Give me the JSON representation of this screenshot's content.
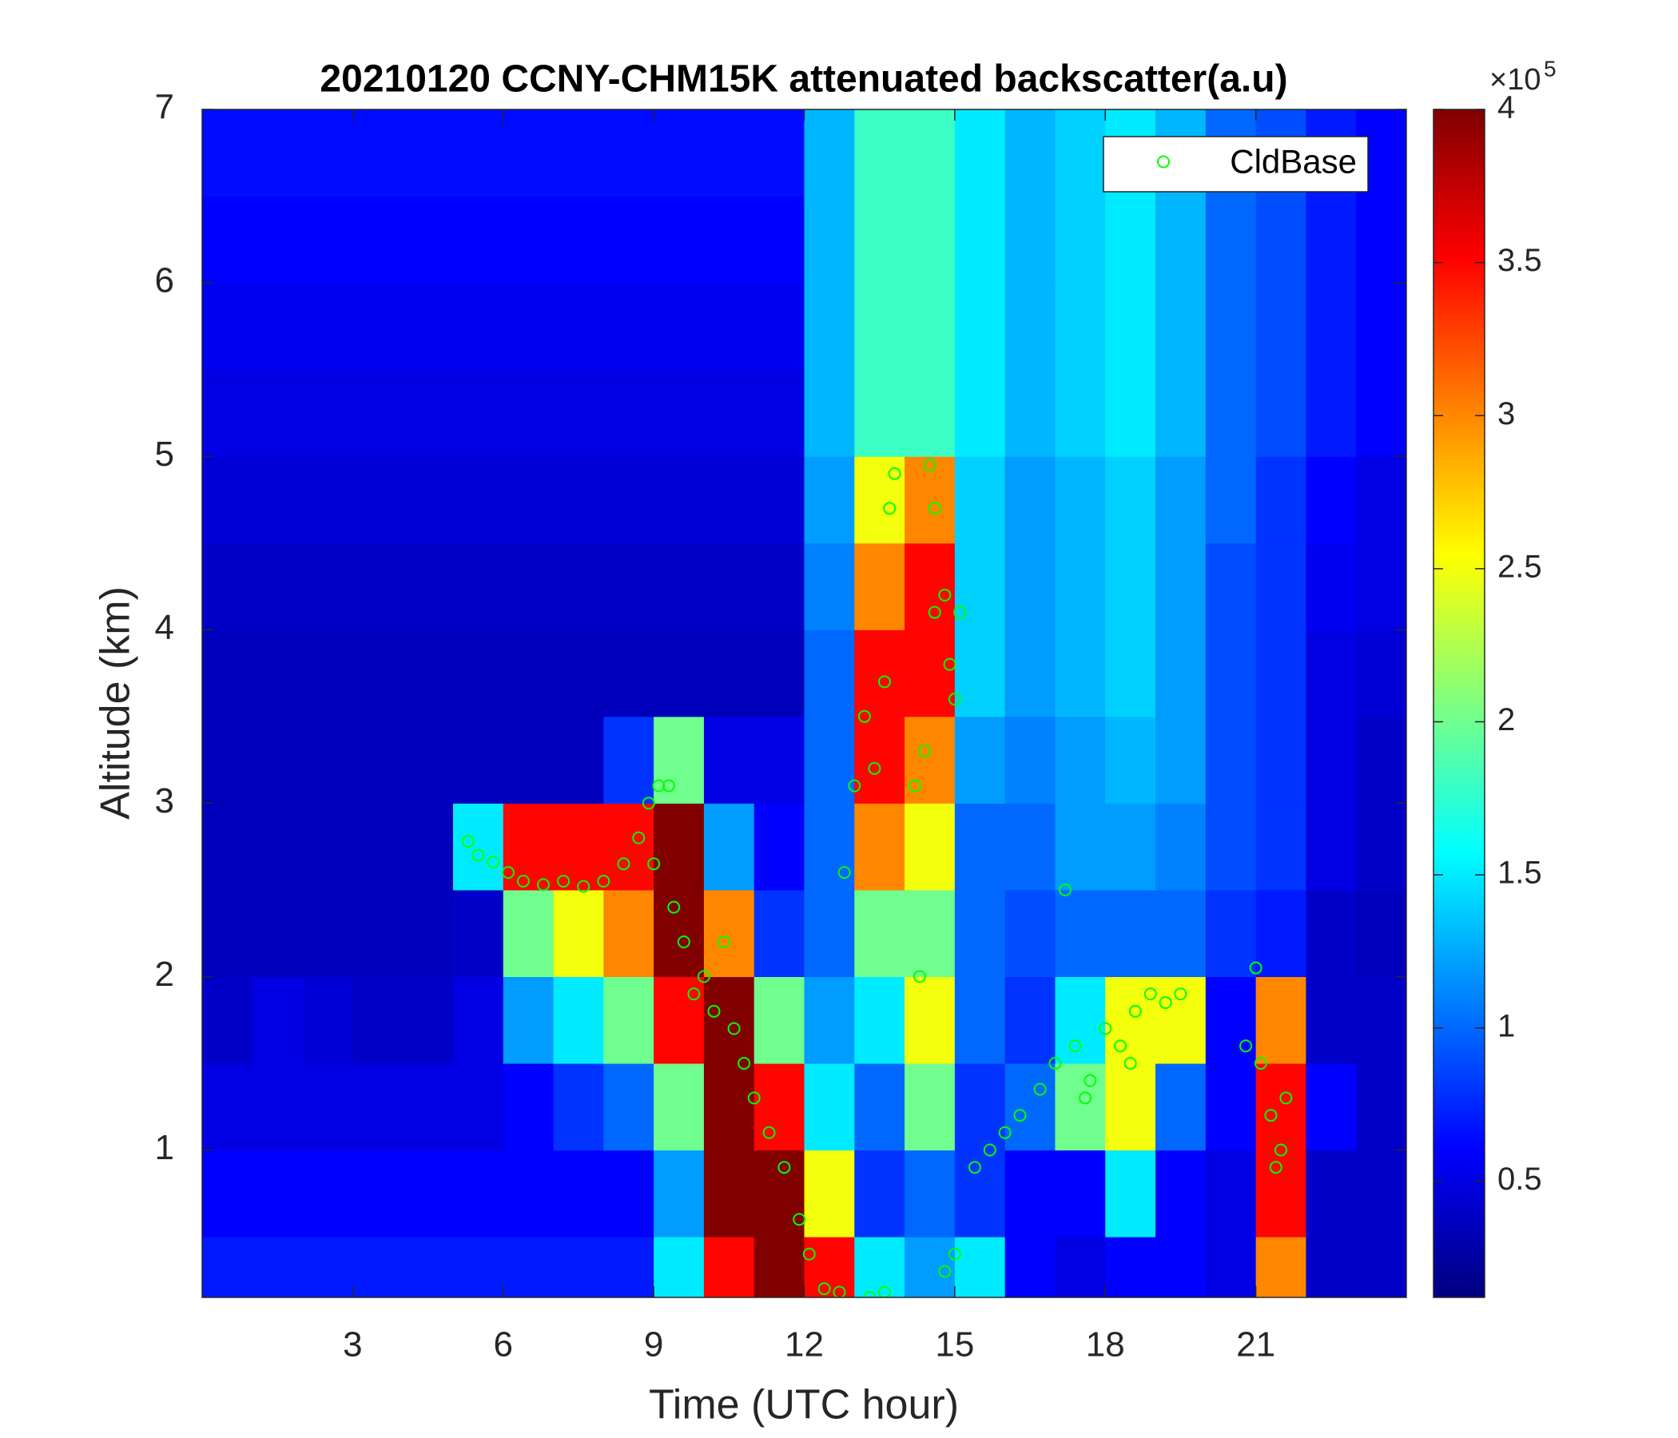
{
  "chart_data": {
    "type": "heatmap",
    "title": "20210120 CCNY-CHM15K attenuated backscatter(a.u)",
    "xlabel": "Time (UTC hour)",
    "ylabel": "Altitude (km)",
    "x": [
      0.5,
      1.5,
      2.5,
      3.5,
      4.5,
      5.5,
      6.5,
      7.5,
      8.5,
      9.5,
      10.5,
      11.5,
      12.5,
      13.5,
      14.5,
      15.5,
      16.5,
      17.5,
      18.5,
      19.5,
      20.5,
      21.5,
      22.5,
      23.5
    ],
    "y": [
      0.25,
      0.75,
      1.25,
      1.75,
      2.25,
      2.75,
      3.25,
      3.75,
      4.25,
      4.75,
      5.25,
      5.75,
      6.25,
      6.75
    ],
    "z": [
      [
        0.7,
        0.7,
        0.7,
        0.7,
        0.7,
        0.7,
        0.7,
        0.7,
        0.7,
        1.5,
        3.5,
        4,
        3.5,
        1.5,
        1.2,
        1.5,
        0.6,
        0.5,
        0.6,
        0.6,
        0.5,
        3,
        0.4,
        0.4
      ],
      [
        0.6,
        0.6,
        0.6,
        0.6,
        0.6,
        0.6,
        0.6,
        0.6,
        0.6,
        1.2,
        4,
        4,
        2.5,
        0.8,
        1,
        0.8,
        0.6,
        0.6,
        1.5,
        0.6,
        0.5,
        3.5,
        0.4,
        0.4
      ],
      [
        0.5,
        0.5,
        0.5,
        0.5,
        0.5,
        0.5,
        0.6,
        0.8,
        1,
        2,
        4,
        3.5,
        1.5,
        1,
        2,
        0.8,
        1,
        2,
        2.5,
        1,
        0.6,
        3.5,
        0.6,
        0.4
      ],
      [
        0.4,
        0.5,
        0.45,
        0.4,
        0.4,
        0.5,
        1.2,
        1.5,
        2,
        3.5,
        4,
        2,
        1.2,
        1.5,
        2.5,
        1,
        0.8,
        1.5,
        2.5,
        2.5,
        0.6,
        3,
        0.4,
        0.4
      ],
      [
        0.35,
        0.35,
        0.35,
        0.35,
        0.35,
        0.4,
        2,
        2.5,
        3,
        4,
        3,
        0.8,
        1,
        2,
        2,
        1,
        0.9,
        1,
        1,
        1,
        0.8,
        0.7,
        0.4,
        0.35
      ],
      [
        0.35,
        0.35,
        0.35,
        0.35,
        0.35,
        1.5,
        3.5,
        3.5,
        3.5,
        4,
        1.2,
        0.6,
        1,
        3,
        2.5,
        1,
        1,
        1.2,
        1.2,
        1.1,
        0.9,
        0.8,
        0.5,
        0.4
      ],
      [
        0.35,
        0.35,
        0.35,
        0.35,
        0.35,
        0.35,
        0.35,
        0.35,
        0.8,
        2,
        0.5,
        0.5,
        1,
        3.5,
        3,
        1.2,
        1.1,
        1.2,
        1.3,
        1.2,
        0.9,
        0.8,
        0.5,
        0.4
      ],
      [
        0.35,
        0.35,
        0.35,
        0.35,
        0.35,
        0.35,
        0.35,
        0.35,
        0.35,
        0.35,
        0.35,
        0.35,
        1,
        3.5,
        3.5,
        1.4,
        1.2,
        1.3,
        1.4,
        1.2,
        0.9,
        0.8,
        0.5,
        0.45
      ],
      [
        0.4,
        0.4,
        0.4,
        0.4,
        0.4,
        0.4,
        0.4,
        0.4,
        0.4,
        0.4,
        0.4,
        0.4,
        1.1,
        3,
        3.5,
        1.4,
        1.2,
        1.3,
        1.4,
        1.2,
        0.9,
        0.8,
        0.55,
        0.5
      ],
      [
        0.45,
        0.45,
        0.45,
        0.45,
        0.45,
        0.45,
        0.45,
        0.45,
        0.45,
        0.45,
        0.45,
        0.45,
        1.2,
        2.5,
        3,
        1.4,
        1.2,
        1.3,
        1.4,
        1.2,
        1,
        0.8,
        0.6,
        0.5
      ],
      [
        0.5,
        0.5,
        0.5,
        0.5,
        0.5,
        0.5,
        0.5,
        0.5,
        0.5,
        0.5,
        0.5,
        0.5,
        1.3,
        1.8,
        1.8,
        1.5,
        1.3,
        1.4,
        1.5,
        1.3,
        1,
        0.9,
        0.7,
        0.6
      ],
      [
        0.55,
        0.55,
        0.55,
        0.55,
        0.55,
        0.55,
        0.55,
        0.55,
        0.55,
        0.55,
        0.55,
        0.55,
        1.3,
        1.8,
        1.8,
        1.5,
        1.3,
        1.4,
        1.5,
        1.3,
        1,
        0.9,
        0.7,
        0.6
      ],
      [
        0.6,
        0.6,
        0.6,
        0.6,
        0.6,
        0.6,
        0.6,
        0.6,
        0.6,
        0.6,
        0.6,
        0.6,
        1.3,
        1.8,
        1.8,
        1.5,
        1.3,
        1.4,
        1.5,
        1.3,
        1,
        0.9,
        0.7,
        0.6
      ],
      [
        0.65,
        0.65,
        0.65,
        0.65,
        0.65,
        0.65,
        0.65,
        0.65,
        0.65,
        0.65,
        0.65,
        0.65,
        1.3,
        1.8,
        1.8,
        1.5,
        1.3,
        1.4,
        1.5,
        1.3,
        1,
        0.9,
        0.7,
        0.6
      ]
    ],
    "xlim": [
      0,
      24
    ],
    "ylim": [
      0.15,
      7
    ],
    "xticks": [
      3,
      6,
      9,
      12,
      15,
      18,
      21
    ],
    "yticks": [
      1,
      2,
      3,
      4,
      5,
      6,
      7
    ],
    "colormap": "jet",
    "clim": [
      0.12,
      4
    ],
    "cticks": [
      0.5,
      1,
      1.5,
      2,
      2.5,
      3,
      3.5,
      4
    ],
    "colorbar_scale": "×10",
    "colorbar_exponent": "5",
    "legend": "northeast",
    "series": [
      {
        "name": "CldBase",
        "type": "scatter",
        "color": "#00ff00",
        "x": [
          5.3,
          5.5,
          5.8,
          6.1,
          6.4,
          6.8,
          7.2,
          7.6,
          8.0,
          8.4,
          8.7,
          8.9,
          9.1,
          9.3,
          9.0,
          9.4,
          9.6,
          9.8,
          10.0,
          10.2,
          10.4,
          10.6,
          10.8,
          11.0,
          11.3,
          11.6,
          11.9,
          12.1,
          12.4,
          12.7,
          13.3,
          13.6,
          12.8,
          13.0,
          13.2,
          13.4,
          13.6,
          13.7,
          13.8,
          14.2,
          14.3,
          14.4,
          14.5,
          14.6,
          14.8,
          14.9,
          15.0,
          15.1,
          14.6,
          14.8,
          15.0,
          15.4,
          15.7,
          16.0,
          16.3,
          16.7,
          17.0,
          17.2,
          17.4,
          17.7,
          18.0,
          18.3,
          18.6,
          18.9,
          19.2,
          19.5,
          17.6,
          18.5,
          20.8,
          21.0,
          21.1,
          21.3,
          21.5,
          21.4,
          21.6
        ],
        "values": [
          2.78,
          2.7,
          2.66,
          2.6,
          2.55,
          2.53,
          2.55,
          2.52,
          2.55,
          2.65,
          2.8,
          3.0,
          3.1,
          3.1,
          2.65,
          2.4,
          2.2,
          1.9,
          2.0,
          1.8,
          2.2,
          1.7,
          1.5,
          1.3,
          1.1,
          0.9,
          0.6,
          0.4,
          0.2,
          0.18,
          0.15,
          0.18,
          2.6,
          3.1,
          3.5,
          3.2,
          3.7,
          4.7,
          4.9,
          3.1,
          2.0,
          3.3,
          4.95,
          4.1,
          4.2,
          3.8,
          3.6,
          4.1,
          4.7,
          0.3,
          0.4,
          0.9,
          1.0,
          1.1,
          1.2,
          1.35,
          1.5,
          2.5,
          1.6,
          1.4,
          1.7,
          1.6,
          1.8,
          1.9,
          1.85,
          1.9,
          1.3,
          1.5,
          1.6,
          2.05,
          1.5,
          1.2,
          1.0,
          0.9,
          1.3
        ]
      }
    ]
  }
}
